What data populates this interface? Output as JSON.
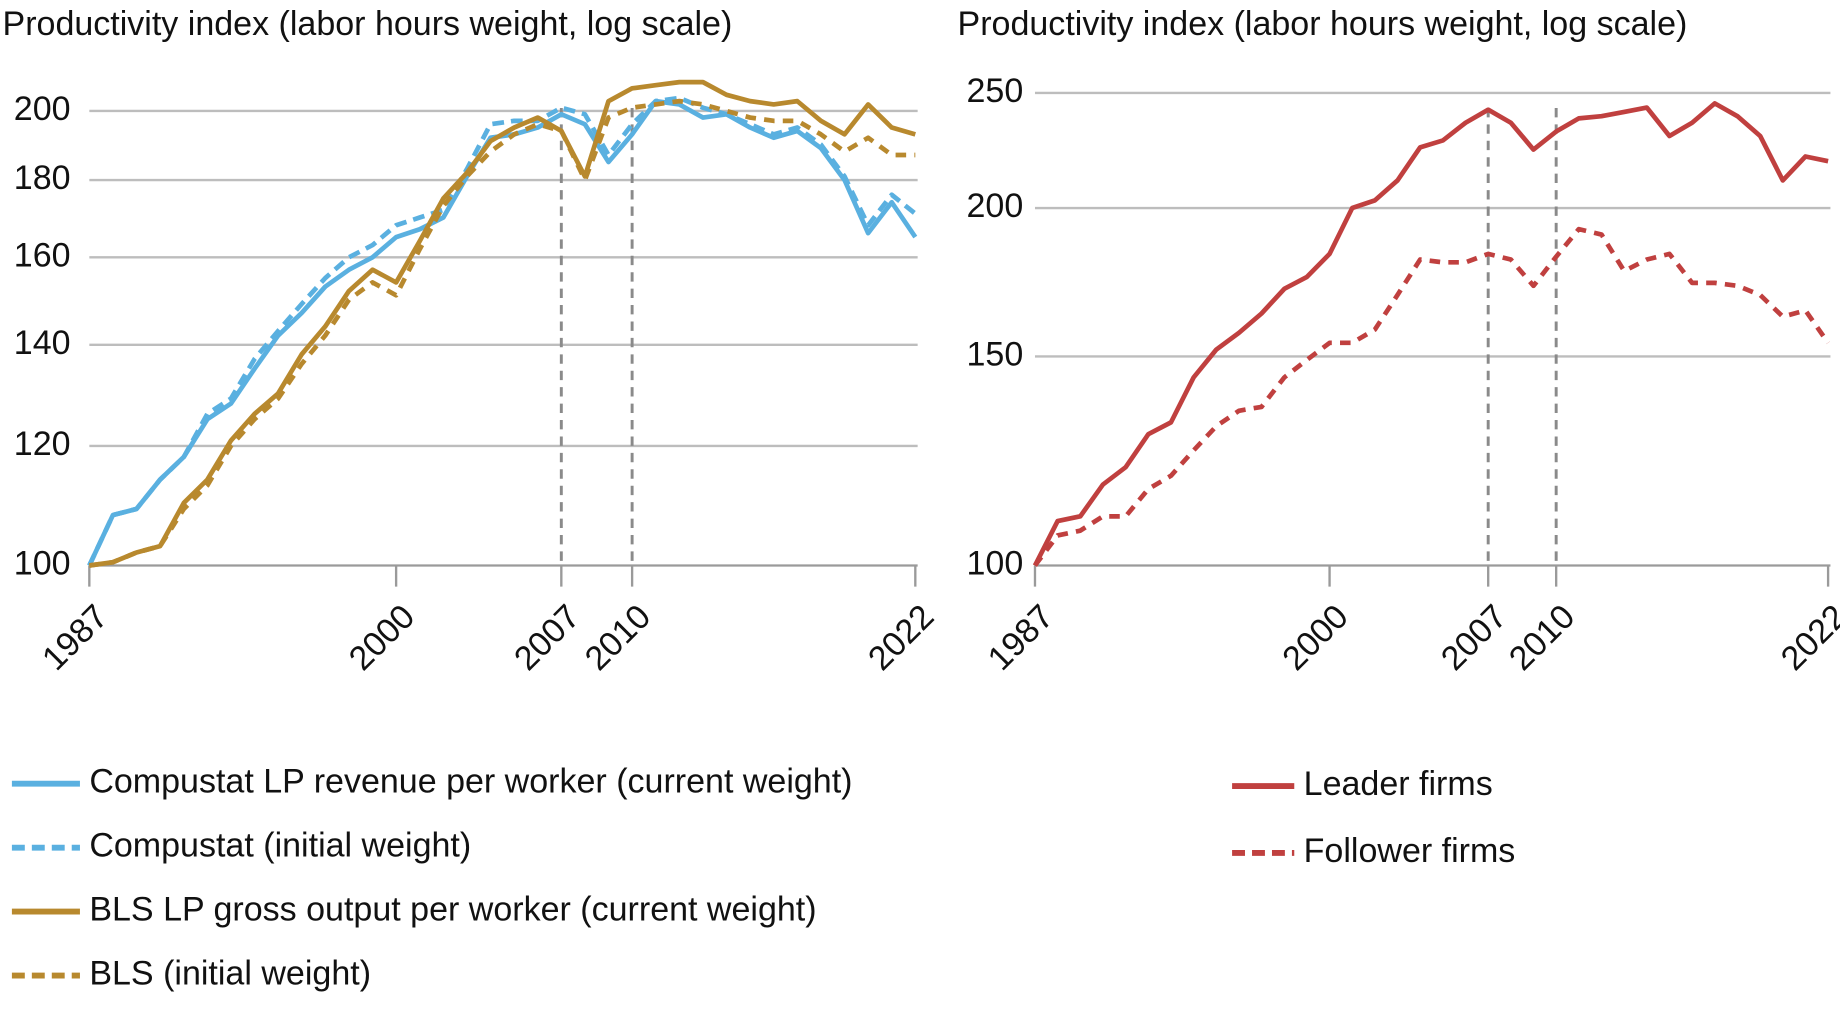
{
  "chart_data": [
    {
      "type": "line",
      "title": "Productivity index (labor hours weight, log scale)",
      "log_scale": true,
      "grid": true,
      "legend": "bottom",
      "x": [
        1987,
        1988,
        1989,
        1990,
        1991,
        1992,
        1993,
        1994,
        1995,
        1996,
        1997,
        1998,
        1999,
        2000,
        2001,
        2002,
        2003,
        2004,
        2005,
        2006,
        2007,
        2008,
        2009,
        2010,
        2011,
        2012,
        2013,
        2014,
        2015,
        2016,
        2017,
        2018,
        2019,
        2020,
        2021,
        2022
      ],
      "xlim": [
        1987,
        2022
      ],
      "xticks": [
        1987,
        2000,
        2007,
        2010,
        2022
      ],
      "vlines": [
        2007,
        2010
      ],
      "ylim": [
        100,
        212
      ],
      "yticks": [
        100,
        120,
        140,
        160,
        180,
        200
      ],
      "series": [
        {
          "name": "Compustat LP revenue per worker (current weight)",
          "color": "#5ab0e0",
          "style": "solid",
          "values": [
            100,
            108,
            109,
            114,
            118,
            125,
            128,
            135,
            142,
            147,
            153,
            157,
            160,
            165,
            167,
            170,
            181,
            192,
            193,
            195,
            199,
            196,
            185,
            193,
            203,
            202,
            198,
            199,
            195,
            192,
            194,
            189,
            180,
            166,
            174,
            165
          ]
        },
        {
          "name": "Compustat (initial weight)",
          "color": "#5ab0e0",
          "style": "dashed",
          "values": [
            100,
            108,
            109,
            114,
            118,
            126,
            129,
            137,
            143,
            149,
            155,
            160,
            163,
            168,
            170,
            172,
            183,
            196,
            197,
            197,
            201,
            199,
            187,
            196,
            203,
            204,
            201,
            199,
            196,
            193,
            195,
            190,
            181,
            168,
            176,
            171
          ]
        },
        {
          "name": "BLS LP gross output per worker (current weight)",
          "color": "#b8892e",
          "style": "solid",
          "values": [
            100,
            100.5,
            102,
            103,
            110,
            114,
            121,
            126,
            130,
            138,
            144,
            152,
            157,
            154,
            164,
            175,
            182,
            191,
            195,
            198,
            194,
            181,
            203,
            207,
            208,
            209,
            209,
            205,
            203,
            202,
            203,
            197,
            193,
            202,
            195,
            193
          ]
        },
        {
          "name": "BLS (initial weight)",
          "color": "#b8892e",
          "style": "dashed",
          "values": [
            100,
            100.5,
            102,
            103,
            109,
            113,
            120,
            125,
            129,
            136,
            142,
            150,
            154,
            151,
            162,
            173,
            181,
            188,
            193,
            196,
            194,
            180,
            198,
            201,
            202,
            203,
            202,
            200,
            198,
            197,
            197,
            193,
            188,
            192,
            187,
            187
          ]
        }
      ]
    },
    {
      "type": "line",
      "title": "Productivity index (labor hours weight, log scale)",
      "log_scale": true,
      "grid": true,
      "legend": "bottom",
      "x": [
        1987,
        1988,
        1989,
        1990,
        1991,
        1992,
        1993,
        1994,
        1995,
        1996,
        1997,
        1998,
        1999,
        2000,
        2001,
        2002,
        2003,
        2004,
        2005,
        2006,
        2007,
        2008,
        2009,
        2010,
        2011,
        2012,
        2013,
        2014,
        2015,
        2016,
        2017,
        2018,
        2019,
        2020,
        2021,
        2022
      ],
      "xlim": [
        1987,
        2022
      ],
      "xticks": [
        1987,
        2000,
        2007,
        2010,
        2022
      ],
      "vlines": [
        2007,
        2010
      ],
      "ylim": [
        100,
        260
      ],
      "yticks": [
        100,
        150,
        200,
        250
      ],
      "series": [
        {
          "name": "Leader firms",
          "color": "#c0403f",
          "style": "solid",
          "values": [
            100,
            109,
            110,
            117,
            121,
            129,
            132,
            144,
            152,
            157,
            163,
            171,
            175,
            183,
            200,
            203,
            211,
            225,
            228,
            236,
            242,
            236,
            224,
            232,
            238,
            239,
            241,
            243,
            230,
            236,
            245,
            239,
            230,
            211,
            221,
            219
          ]
        },
        {
          "name": "Follower firms",
          "color": "#c0403f",
          "style": "dashed",
          "values": [
            100,
            106,
            107,
            110,
            110,
            116,
            119,
            125,
            131,
            135,
            136,
            144,
            149,
            154,
            154,
            158,
            169,
            181,
            180,
            180,
            183,
            181,
            172,
            182,
            192,
            190,
            177,
            181,
            183,
            173,
            173,
            172,
            169,
            162,
            164,
            154
          ]
        }
      ]
    }
  ]
}
